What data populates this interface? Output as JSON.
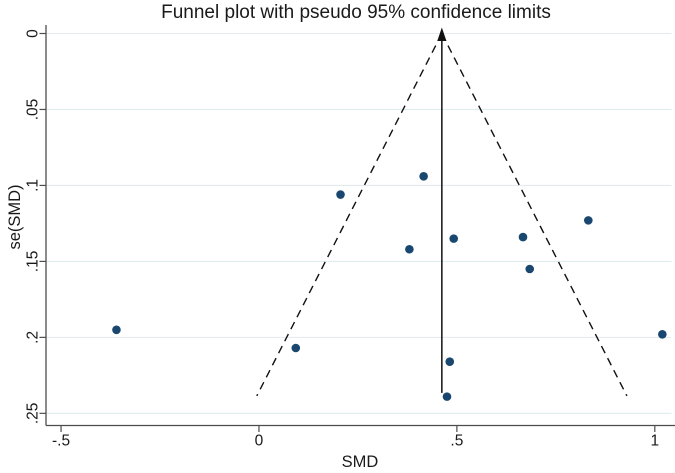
{
  "title": "Funnel plot with pseudo 95% confidence limits",
  "chart_data": {
    "type": "scatter",
    "title": "Funnel plot with pseudo 95% confidence limits",
    "xlabel": "SMD",
    "ylabel": "se(SMD)",
    "x_ticks": {
      "values": [
        -0.5,
        0,
        0.5,
        1
      ],
      "labels": [
        "-.5",
        "0",
        ".5",
        "1"
      ]
    },
    "y_ticks": {
      "values": [
        0,
        0.05,
        0.1,
        0.15,
        0.2,
        0.25
      ],
      "labels": [
        "0",
        ".05",
        ".1",
        ".15",
        ".2",
        ".25"
      ]
    },
    "xlim": [
      -0.538,
      1.051
    ],
    "ylim": [
      0,
      0.258
    ],
    "y_axis_reversed": true,
    "grid": "horizontal-only",
    "legend": "none",
    "points": [
      {
        "smd": -0.36,
        "se": 0.195
      },
      {
        "smd": 0.093,
        "se": 0.207
      },
      {
        "smd": 0.206,
        "se": 0.106
      },
      {
        "smd": 0.38,
        "se": 0.142
      },
      {
        "smd": 0.416,
        "se": 0.094
      },
      {
        "smd": 0.482,
        "se": 0.216
      },
      {
        "smd": 0.475,
        "se": 0.239
      },
      {
        "smd": 0.492,
        "se": 0.135
      },
      {
        "smd": 0.667,
        "se": 0.134
      },
      {
        "smd": 0.684,
        "se": 0.155
      },
      {
        "smd": 0.832,
        "se": 0.123
      },
      {
        "smd": 1.019,
        "se": 0.198
      }
    ],
    "pooled_effect_smd": 0.462,
    "funnel": {
      "multiplier": 1.96,
      "se_end": 0.2385
    },
    "effect_line_se_end": 0.2365,
    "colors": {
      "marker": "#1a476f",
      "grid": "#e1ecee",
      "axis": "#4d4d4d",
      "text": "#1a1a1a",
      "funnel_line": "#111111",
      "background": "#ffffff"
    }
  }
}
